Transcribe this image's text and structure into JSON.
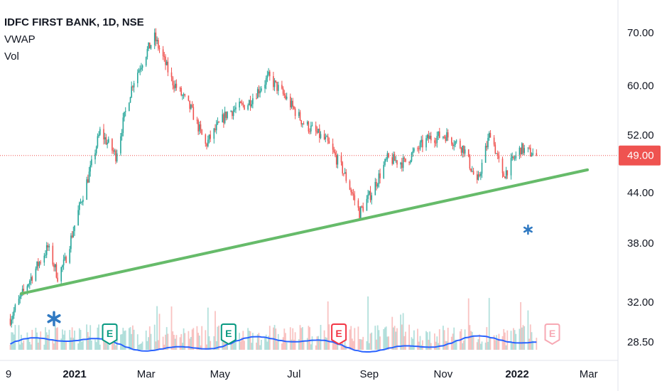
{
  "header": {
    "title": "IDFC FIRST BANK, 1D, NSE",
    "indicator_1": "VWAP",
    "indicator_2": "Vol"
  },
  "price_axis": {
    "tick_labels": [
      "70.00",
      "60.00",
      "52.00",
      "44.00",
      "38.00",
      "32.00",
      "28.50"
    ],
    "last_price_label": "49.00"
  },
  "time_axis": {
    "labels": [
      "9",
      "2021",
      "Mar",
      "May",
      "Jul",
      "Sep",
      "Nov",
      "2022",
      "Mar"
    ],
    "bold": [
      false,
      true,
      false,
      false,
      false,
      false,
      false,
      true,
      false
    ]
  },
  "earnings_markers": [
    "E",
    "E",
    "E",
    "E"
  ],
  "colors": {
    "up": "#26a69a",
    "down": "#ef5350",
    "trendline": "#66bb6a",
    "vwap": "#2962ff",
    "last_price_bg": "#ef5350",
    "asterisk": "#2f79c2",
    "earnings_past_up": "#089981",
    "earnings_past_down": "#f23645",
    "earnings_future": "#f7a9b4"
  },
  "icons": [
    "asterisk-icon",
    "earnings-flag-icon"
  ],
  "chart_data": {
    "type": "candlestick",
    "title": "IDFC FIRST BANK, 1D, NSE",
    "ylim": [
      28.5,
      72
    ],
    "y_scale": "log",
    "x_range": [
      "2020-11-09",
      "2022-03-31"
    ],
    "grid": false,
    "last_price": 49.0,
    "price_path": [
      {
        "date": "2020-11-09",
        "close": 30.5
      },
      {
        "date": "2020-11-20",
        "close": 33.0
      },
      {
        "date": "2020-12-01",
        "close": 35.5
      },
      {
        "date": "2020-12-10",
        "close": 37.5
      },
      {
        "date": "2020-12-18",
        "close": 34.5
      },
      {
        "date": "2020-12-24",
        "close": 36.0
      },
      {
        "date": "2021-01-01",
        "close": 40.0
      },
      {
        "date": "2021-01-14",
        "close": 47.0
      },
      {
        "date": "2021-01-22",
        "close": 52.5
      },
      {
        "date": "2021-02-04",
        "close": 49.0
      },
      {
        "date": "2021-02-18",
        "close": 60.5
      },
      {
        "date": "2021-03-01",
        "close": 66.0
      },
      {
        "date": "2021-03-08",
        "close": 69.0
      },
      {
        "date": "2021-03-22",
        "close": 61.0
      },
      {
        "date": "2021-04-07",
        "close": 56.0
      },
      {
        "date": "2021-04-19",
        "close": 50.5
      },
      {
        "date": "2021-05-07",
        "close": 55.5
      },
      {
        "date": "2021-05-24",
        "close": 57.0
      },
      {
        "date": "2021-06-10",
        "close": 61.5
      },
      {
        "date": "2021-06-24",
        "close": 58.0
      },
      {
        "date": "2021-07-08",
        "close": 54.0
      },
      {
        "date": "2021-07-28",
        "close": 51.0
      },
      {
        "date": "2021-08-10",
        "close": 47.0
      },
      {
        "date": "2021-08-24",
        "close": 41.5
      },
      {
        "date": "2021-09-03",
        "close": 44.0
      },
      {
        "date": "2021-09-16",
        "close": 48.5
      },
      {
        "date": "2021-09-30",
        "close": 48.0
      },
      {
        "date": "2021-10-20",
        "close": 51.5
      },
      {
        "date": "2021-11-03",
        "close": 52.0
      },
      {
        "date": "2021-11-18",
        "close": 50.0
      },
      {
        "date": "2021-11-29",
        "close": 45.0
      },
      {
        "date": "2021-12-10",
        "close": 52.5
      },
      {
        "date": "2021-12-20",
        "close": 46.0
      },
      {
        "date": "2022-01-04",
        "close": 50.0
      },
      {
        "date": "2022-01-17",
        "close": 49.0
      }
    ],
    "trendline": [
      {
        "date": "2020-11-18",
        "price": 32.8
      },
      {
        "date": "2022-02-28",
        "price": 47.0
      }
    ],
    "annotations": [
      {
        "type": "asterisk",
        "date": "2020-12-15",
        "price": 30.5
      },
      {
        "type": "asterisk",
        "date": "2022-01-10",
        "price": 39.5
      },
      {
        "type": "earnings",
        "date": "2021-01-30",
        "result": "beat"
      },
      {
        "type": "earnings",
        "date": "2021-05-08",
        "result": "beat"
      },
      {
        "type": "earnings",
        "date": "2021-08-07",
        "result": "miss"
      },
      {
        "type": "earnings",
        "date": "2022-01-30",
        "result": "upcoming"
      }
    ]
  }
}
